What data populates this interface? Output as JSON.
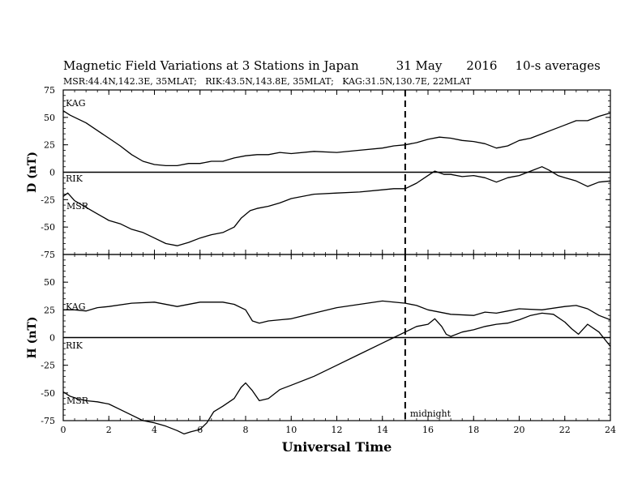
{
  "header": {
    "title": "Magnetic Field Variations at 3 Stations in Japan",
    "date": "31 May",
    "year": "2016",
    "averaging": "10-s averages",
    "stations_line": "MSR:44.4N,142.3E, 35MLAT;   RIK:43.5N,143.8E, 35MLAT;   KAG:31.5N,130.7E, 22MLAT"
  },
  "chart_data": [
    {
      "type": "line",
      "panel": "D",
      "ylabel": "D (nT)",
      "xlabel": "",
      "xlim": [
        0,
        24
      ],
      "ylim": [
        -75,
        75
      ],
      "yticks": [
        75,
        50,
        25,
        0,
        -25,
        -50,
        -75
      ],
      "xticks": [
        0,
        2,
        4,
        6,
        8,
        10,
        12,
        14,
        16,
        18,
        20,
        22,
        24
      ],
      "zero_line": true,
      "vertical_marker_x": 15,
      "series": [
        {
          "name": "KAG",
          "x": [
            0,
            0.3,
            0.6,
            1,
            1.5,
            2,
            2.5,
            3,
            3.5,
            4,
            4.5,
            5,
            5.5,
            6,
            6.5,
            7,
            7.5,
            8,
            8.5,
            9,
            9.5,
            10,
            11,
            12,
            13,
            14,
            14.5,
            15,
            15.5,
            16,
            16.5,
            17,
            17.5,
            18,
            18.5,
            19,
            19.5,
            20,
            20.5,
            21,
            21.5,
            22,
            22.5,
            23,
            23.5,
            24
          ],
          "values": [
            56,
            52,
            49,
            45,
            38,
            31,
            24,
            16,
            10,
            7,
            6,
            6,
            8,
            8,
            10,
            10,
            13,
            15,
            16,
            16,
            18,
            17,
            19,
            18,
            20,
            22,
            24,
            25,
            27,
            30,
            32,
            31,
            29,
            28,
            26,
            22,
            24,
            29,
            31,
            35,
            39,
            43,
            47,
            47,
            51,
            54
          ]
        },
        {
          "name": "RIK",
          "x": [],
          "values": []
        },
        {
          "name": "MSR",
          "x": [
            0,
            0.2,
            0.5,
            1,
            1.5,
            2,
            2.5,
            3,
            3.5,
            4,
            4.5,
            5,
            5.5,
            6,
            6.5,
            7,
            7.5,
            7.8,
            8.2,
            8.5,
            9,
            9.5,
            10,
            11,
            12,
            13,
            14,
            14.5,
            15,
            15.5,
            16,
            16.3,
            16.7,
            17,
            17.5,
            18,
            18.5,
            19,
            19.5,
            20,
            20.5,
            21,
            21.3,
            21.7,
            22,
            22.5,
            23,
            23.5,
            24
          ],
          "values": [
            -22,
            -19,
            -26,
            -32,
            -38,
            -44,
            -47,
            -52,
            -55,
            -60,
            -65,
            -67,
            -64,
            -60,
            -57,
            -55,
            -50,
            -42,
            -35,
            -33,
            -31,
            -28,
            -24,
            -20,
            -19,
            -18,
            -16,
            -15,
            -15,
            -10,
            -3,
            1,
            -2,
            -2,
            -4,
            -3,
            -5,
            -9,
            -5,
            -3,
            1,
            5,
            2,
            -3,
            -5,
            -8,
            -13,
            -9,
            -8
          ]
        }
      ]
    },
    {
      "type": "line",
      "panel": "H",
      "ylabel": "H (nT)",
      "xlabel": "Universal Time",
      "xlim": [
        0,
        24
      ],
      "ylim": [
        -75,
        75
      ],
      "yticks": [
        75,
        50,
        25,
        0,
        -25,
        -50,
        -75
      ],
      "xticks": [
        0,
        2,
        4,
        6,
        8,
        10,
        12,
        14,
        16,
        18,
        20,
        22,
        24
      ],
      "xticklabels": [
        "0",
        "2",
        "4",
        "6",
        "8",
        "10",
        "12",
        "14",
        "16",
        "18",
        "20",
        "22",
        "24"
      ],
      "zero_line": true,
      "vertical_marker_x": 15,
      "annotation": "midnight",
      "series": [
        {
          "name": "KAG",
          "x": [
            0,
            0.5,
            1,
            1.5,
            2,
            3,
            4,
            5,
            6,
            7,
            7.5,
            8,
            8.3,
            8.6,
            9,
            9.5,
            10,
            11,
            12,
            13,
            14,
            15,
            15.5,
            16,
            17,
            18,
            18.5,
            19,
            19.5,
            20,
            21,
            22,
            22.5,
            23,
            23.5,
            24
          ],
          "values": [
            25,
            25,
            24,
            27,
            28,
            31,
            32,
            28,
            32,
            32,
            30,
            25,
            15,
            13,
            15,
            16,
            17,
            22,
            27,
            30,
            33,
            31,
            29,
            25,
            21,
            20,
            23,
            22,
            24,
            26,
            25,
            28,
            29,
            26,
            20,
            16
          ]
        },
        {
          "name": "RIK",
          "x": [],
          "values": []
        },
        {
          "name": "MSR",
          "x": [
            0,
            0.3,
            0.6,
            1,
            1.5,
            2,
            2.5,
            3,
            3.5,
            4,
            4.5,
            5,
            5.3,
            5.6,
            6,
            6.3,
            6.6,
            7,
            7.5,
            7.8,
            8,
            8.3,
            8.6,
            9,
            9.5,
            10,
            11,
            12,
            13,
            14,
            14.5,
            15,
            15.5,
            16,
            16.3,
            16.6,
            16.8,
            17,
            17.5,
            18,
            18.5,
            19,
            19.5,
            20,
            20.5,
            21,
            21.5,
            22,
            22.3,
            22.6,
            23,
            23.5,
            24
          ],
          "values": [
            -49,
            -53,
            -55,
            -57,
            -58,
            -60,
            -65,
            -70,
            -75,
            -77,
            -80,
            -84,
            -87,
            -85,
            -83,
            -77,
            -67,
            -62,
            -55,
            -45,
            -41,
            -48,
            -57,
            -55,
            -47,
            -43,
            -35,
            -25,
            -15,
            -5,
            0,
            5,
            10,
            12,
            17,
            10,
            3,
            1,
            5,
            7,
            10,
            12,
            13,
            16,
            20,
            22,
            21,
            14,
            8,
            3,
            12,
            5,
            -8
          ]
        }
      ]
    }
  ]
}
